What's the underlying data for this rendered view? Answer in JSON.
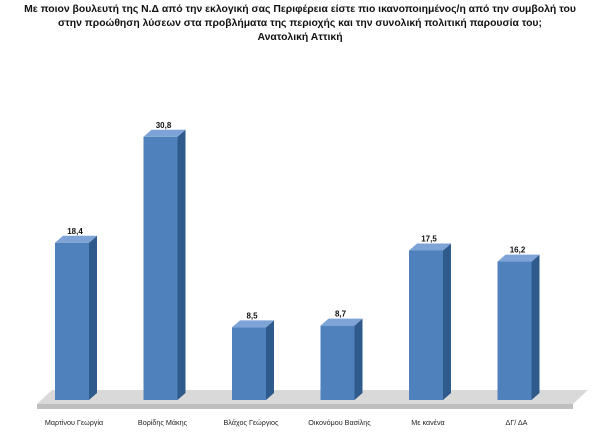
{
  "chart_data": {
    "type": "bar",
    "title_lines": [
      "Με ποιον βουλευτή της Ν.Δ από την εκλογική σας Περιφέρεια είστε πιο ικανοποιημένος/η από την συμβολή του",
      "στην προώθηση λύσεων στα προβλήματα της περιοχής και την συνολική πολιτική παρουσία του;",
      "Ανατολική Αττική"
    ],
    "categories": [
      "Μαρτίνου Γεωργία",
      "Βορίδης Μάκης",
      "Βλάχος Γεώργιος",
      "Οικονόμου Βασίλης",
      "Με κανένα",
      "ΔΓ/ ΔΑ"
    ],
    "values": [
      18.4,
      30.8,
      8.5,
      8.7,
      17.5,
      16.2
    ],
    "value_labels": [
      "18,4",
      "30,8",
      "8,5",
      "8,7",
      "17,5",
      "16,2"
    ],
    "ylim": [
      0,
      33
    ],
    "grid": false,
    "legend": "none",
    "bar_color": "#4f81bd",
    "bar_side_color": "#2f5a8c",
    "bar_top_color": "#7ea3d6",
    "floor_color": "#d9d9d9"
  }
}
